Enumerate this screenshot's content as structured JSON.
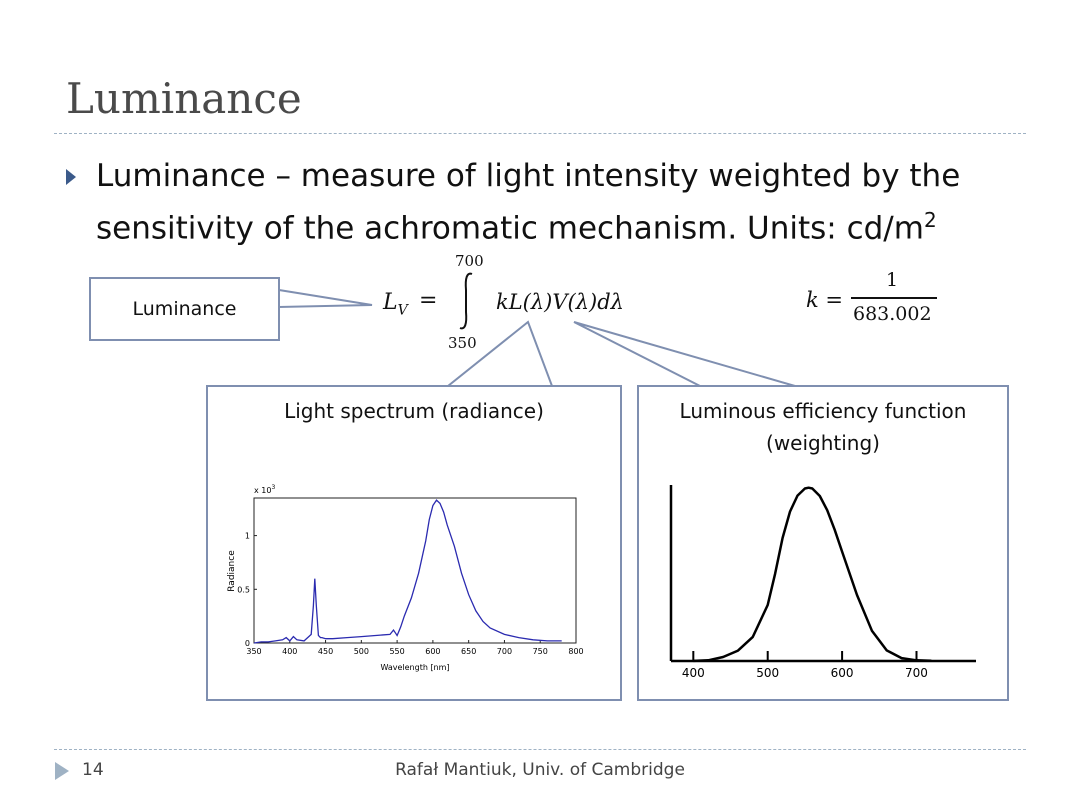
{
  "slide": {
    "title": "Luminance",
    "bullet": "Luminance – measure of light intensity weighted by the sensitivity of the achromatic mechanism. Units: cd/m",
    "bullet_sup": "2"
  },
  "formula": {
    "lhs": "L",
    "lhs_sub": "V",
    "equals": "=",
    "upper": "700",
    "lower": "350",
    "integrand": "kL(λ)V(λ)dλ",
    "k_lhs": "k =",
    "k_num": "1",
    "k_den": "683.002"
  },
  "callouts": {
    "luminance": "Luminance",
    "spectrum_title": "Light spectrum (radiance)",
    "efficiency_title_1": "Luminous efficiency function",
    "efficiency_title_2": "(weighting)"
  },
  "chart_data": [
    {
      "type": "line",
      "title": "",
      "xlabel": "Wavelength [nm]",
      "ylabel": "Radiance",
      "y_multiplier": "x 10",
      "y_multiplier_exp": "3",
      "xlim": [
        350,
        800
      ],
      "ylim": [
        0,
        1.35
      ],
      "xticks": [
        "350",
        "400",
        "450",
        "500",
        "550",
        "600",
        "650",
        "700",
        "750",
        "800"
      ],
      "yticks": [
        "0",
        "0.5",
        "1"
      ],
      "color": "#2b2bb0",
      "x": [
        350,
        360,
        370,
        380,
        390,
        395,
        400,
        405,
        410,
        420,
        430,
        433,
        435,
        437,
        440,
        443,
        445,
        450,
        460,
        480,
        500,
        520,
        540,
        545,
        548,
        550,
        552,
        555,
        560,
        570,
        580,
        590,
        595,
        600,
        605,
        610,
        615,
        620,
        630,
        640,
        650,
        660,
        670,
        680,
        700,
        720,
        740,
        760,
        780
      ],
      "y": [
        0.0,
        0.01,
        0.01,
        0.02,
        0.03,
        0.05,
        0.02,
        0.06,
        0.03,
        0.02,
        0.08,
        0.35,
        0.6,
        0.35,
        0.07,
        0.05,
        0.05,
        0.04,
        0.04,
        0.05,
        0.06,
        0.07,
        0.08,
        0.12,
        0.09,
        0.07,
        0.1,
        0.15,
        0.25,
        0.42,
        0.65,
        0.95,
        1.15,
        1.28,
        1.33,
        1.3,
        1.22,
        1.1,
        0.9,
        0.65,
        0.45,
        0.3,
        0.2,
        0.14,
        0.08,
        0.05,
        0.03,
        0.02,
        0.02
      ]
    },
    {
      "type": "line",
      "title": "",
      "xlabel": "",
      "ylabel": "",
      "xlim": [
        370,
        780
      ],
      "ylim": [
        0,
        1.05
      ],
      "xticks": [
        "400",
        "500",
        "600",
        "700"
      ],
      "color": "#000000",
      "x": [
        400,
        420,
        440,
        460,
        480,
        500,
        510,
        520,
        530,
        540,
        550,
        555,
        560,
        570,
        580,
        590,
        600,
        620,
        640,
        660,
        680,
        700,
        720
      ],
      "y": [
        0.0004,
        0.004,
        0.023,
        0.06,
        0.139,
        0.323,
        0.503,
        0.71,
        0.862,
        0.954,
        0.995,
        1.0,
        0.995,
        0.952,
        0.87,
        0.757,
        0.631,
        0.381,
        0.175,
        0.061,
        0.017,
        0.004,
        0.001
      ]
    }
  ],
  "footer": {
    "page_number": "14",
    "author": "Rafał Mantiuk, Univ. of Cambridge"
  }
}
